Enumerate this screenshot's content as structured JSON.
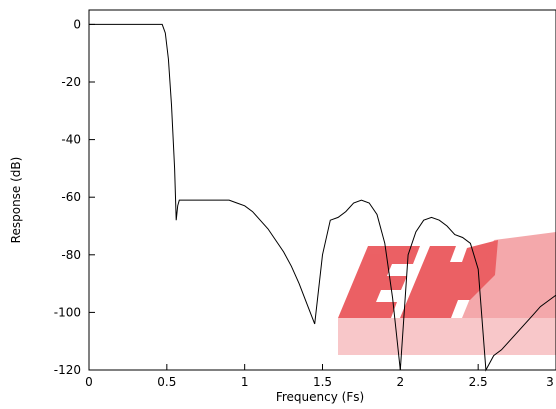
{
  "chart_data": {
    "type": "line",
    "title": "",
    "xlabel": "Frequency (Fs)",
    "ylabel": "Response (dB)",
    "xlim": [
      0,
      3
    ],
    "ylim": [
      -120,
      5
    ],
    "x_ticks": [
      0,
      0.5,
      1,
      1.5,
      2,
      2.5,
      3
    ],
    "x_tick_labels": [
      "0",
      "0.5",
      "1",
      "1.5",
      "2",
      "2.5",
      "3"
    ],
    "y_ticks": [
      0,
      -20,
      -40,
      -60,
      -80,
      -100,
      -120
    ],
    "y_tick_labels": [
      "0",
      "-20",
      "-40",
      "-60",
      "-80",
      "-100",
      "-120"
    ],
    "grid": false,
    "legend": "none",
    "line_color": "#000000",
    "watermark": {
      "text": "TEPM",
      "color": "#e8454a"
    },
    "series": [
      {
        "x": [
          0,
          0.47,
          0.49,
          0.51,
          0.53,
          0.55,
          0.56,
          0.57,
          0.58,
          0.6,
          0.62,
          0.65,
          0.7,
          0.75,
          0.8,
          0.85,
          0.9,
          0.95,
          1.0,
          1.05,
          1.1,
          1.15,
          1.2,
          1.25,
          1.3,
          1.35,
          1.4,
          1.45,
          1.5,
          1.55,
          1.6,
          1.65,
          1.7,
          1.75,
          1.8,
          1.85,
          1.9,
          1.95,
          2.0,
          2.05,
          2.1,
          2.15,
          2.2,
          2.25,
          2.3,
          2.35,
          2.4,
          2.45,
          2.5,
          2.55,
          2.6,
          2.65,
          2.7,
          2.75,
          2.8,
          2.85,
          2.9,
          2.95,
          3.0
        ],
        "y": [
          0,
          0,
          -3,
          -12,
          -28,
          -50,
          -68,
          -63,
          -61,
          -61,
          -61,
          -61,
          -61,
          -61,
          -61,
          -61,
          -61,
          -62,
          -63,
          -65,
          -68,
          -71,
          -75,
          -79,
          -84,
          -90,
          -97,
          -104,
          -80,
          -68,
          -67,
          -65,
          -62,
          -61,
          -62,
          -66,
          -76,
          -95,
          -120,
          -80,
          -72,
          -68,
          -67,
          -68,
          -70,
          -73,
          -74,
          -76,
          -85,
          -120,
          -115,
          -113,
          -110,
          -107,
          -104,
          -101,
          -98,
          -96,
          -94
        ]
      }
    ]
  }
}
